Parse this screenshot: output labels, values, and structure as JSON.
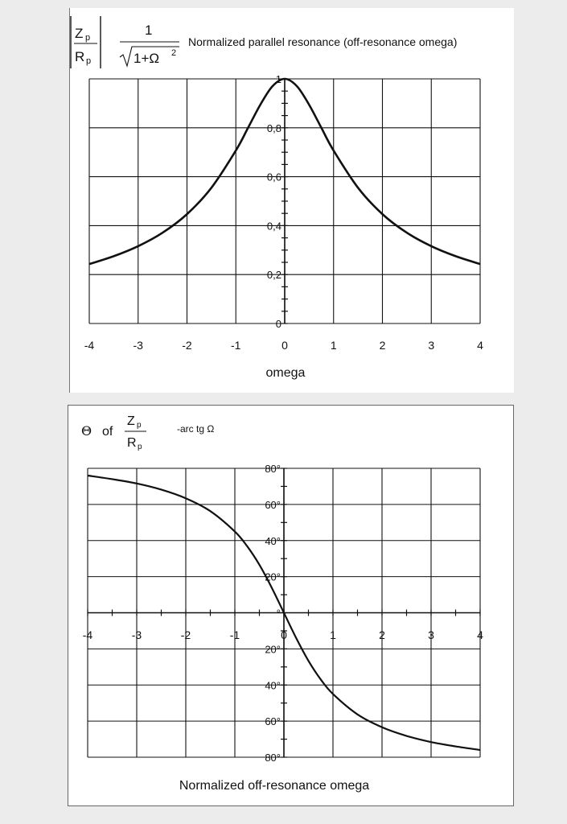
{
  "chart_data": [
    {
      "type": "line",
      "title": "Normalized parallel resonance (off-resonance omega)",
      "formula": {
        "lhs_numerator": "Z",
        "lhs_numerator_sub": "p",
        "lhs_denominator": "R",
        "lhs_denominator_sub": "p",
        "rhs_numerator": "1",
        "rhs_denominator": "1+Ω",
        "rhs_exponent": "2"
      },
      "xlabel": "omega",
      "ylabel": "",
      "xlim": [
        -4,
        4
      ],
      "ylim": [
        0,
        1
      ],
      "grid": true,
      "x_ticks": [
        "-4",
        "-3",
        "-2",
        "-1",
        "0",
        "1",
        "2",
        "3",
        "4"
      ],
      "y_ticks": [
        "0",
        "0,2",
        "0,4",
        "0,6",
        "0,8",
        "1"
      ],
      "series": [
        {
          "x": [
            -4,
            -3.5,
            -3,
            -2.5,
            -2,
            -1.5,
            -1,
            -0.75,
            -0.5,
            -0.25,
            0,
            0.25,
            0.5,
            0.75,
            1,
            1.5,
            2,
            2.5,
            3,
            3.5,
            4
          ],
          "values": [
            0.243,
            0.275,
            0.316,
            0.371,
            0.447,
            0.555,
            0.707,
            0.8,
            0.894,
            0.97,
            1,
            0.97,
            0.894,
            0.8,
            0.707,
            0.555,
            0.447,
            0.371,
            0.316,
            0.275,
            0.243
          ]
        }
      ]
    },
    {
      "type": "line",
      "title_prefix": "Θ",
      "title_of": "of",
      "formula": {
        "numerator": "Z",
        "numerator_sub": "p",
        "denominator": "R",
        "denominator_sub": "p",
        "rhs": "-arc tg Ω"
      },
      "xlabel": "Normalized off-resonance omega",
      "ylabel": "",
      "xlim": [
        -4,
        4
      ],
      "ylim": [
        -80,
        80
      ],
      "grid": true,
      "x_ticks": [
        "-4",
        "-3",
        "-2",
        "-1",
        "0",
        "1",
        "2",
        "3",
        "4"
      ],
      "y_ticks": [
        "80°",
        "60°",
        "40°",
        "20°",
        "°",
        "20°",
        "40°",
        "60°",
        "80°"
      ],
      "series": [
        {
          "x": [
            -4,
            -3.5,
            -3,
            -2.5,
            -2,
            -1.5,
            -1,
            -0.75,
            -0.5,
            -0.25,
            0,
            0.25,
            0.5,
            0.75,
            1,
            1.5,
            2,
            2.5,
            3,
            3.5,
            4
          ],
          "values": [
            76,
            74,
            71.6,
            68.2,
            63.4,
            56.3,
            45,
            36.9,
            26.6,
            14,
            0,
            -14,
            -26.6,
            -36.9,
            -45,
            -56.3,
            -63.4,
            -68.2,
            -71.6,
            -74,
            -76
          ]
        }
      ]
    }
  ]
}
